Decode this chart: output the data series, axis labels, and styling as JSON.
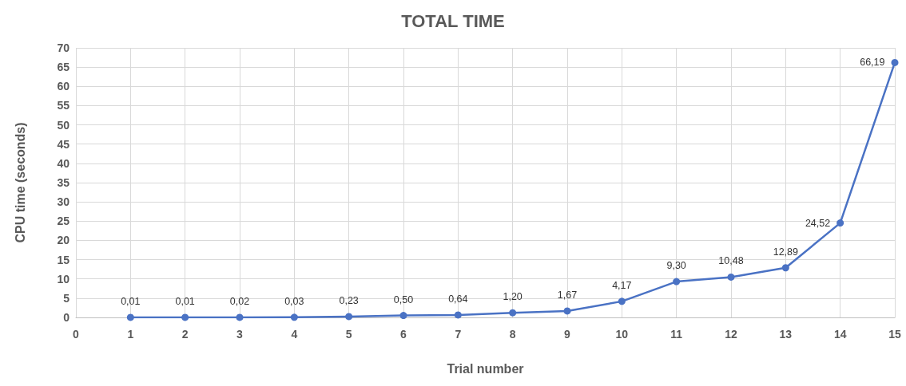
{
  "chart_data": {
    "type": "line",
    "title": "TOTAL TIME",
    "xlabel": "Trial number",
    "ylabel": "CPU time (seconds)",
    "x": [
      1,
      2,
      3,
      4,
      5,
      6,
      7,
      8,
      9,
      10,
      11,
      12,
      13,
      14,
      15
    ],
    "series": [
      {
        "color": "#4a72c4",
        "values": [
          0.01,
          0.01,
          0.02,
          0.03,
          0.23,
          0.5,
          0.64,
          1.2,
          1.67,
          4.17,
          9.3,
          10.48,
          12.89,
          24.52,
          66.19
        ],
        "value_labels": [
          "0,01",
          "0,01",
          "0,02",
          "0,03",
          "0,23",
          "0,50",
          "0,64",
          "1,20",
          "1,67",
          "4,17",
          "9,30",
          "10,48",
          "12,89",
          "24,52",
          "66,19"
        ]
      }
    ],
    "xlim": [
      0,
      15
    ],
    "xticks": [
      0,
      1,
      2,
      3,
      4,
      5,
      6,
      7,
      8,
      9,
      10,
      11,
      12,
      13,
      14,
      15
    ],
    "ylim": [
      0,
      70
    ],
    "yticks": [
      0,
      5,
      10,
      15,
      20,
      25,
      30,
      35,
      40,
      45,
      50,
      55,
      60,
      65,
      70
    ],
    "grid": true,
    "marker": "circle",
    "line_style": "solid"
  }
}
